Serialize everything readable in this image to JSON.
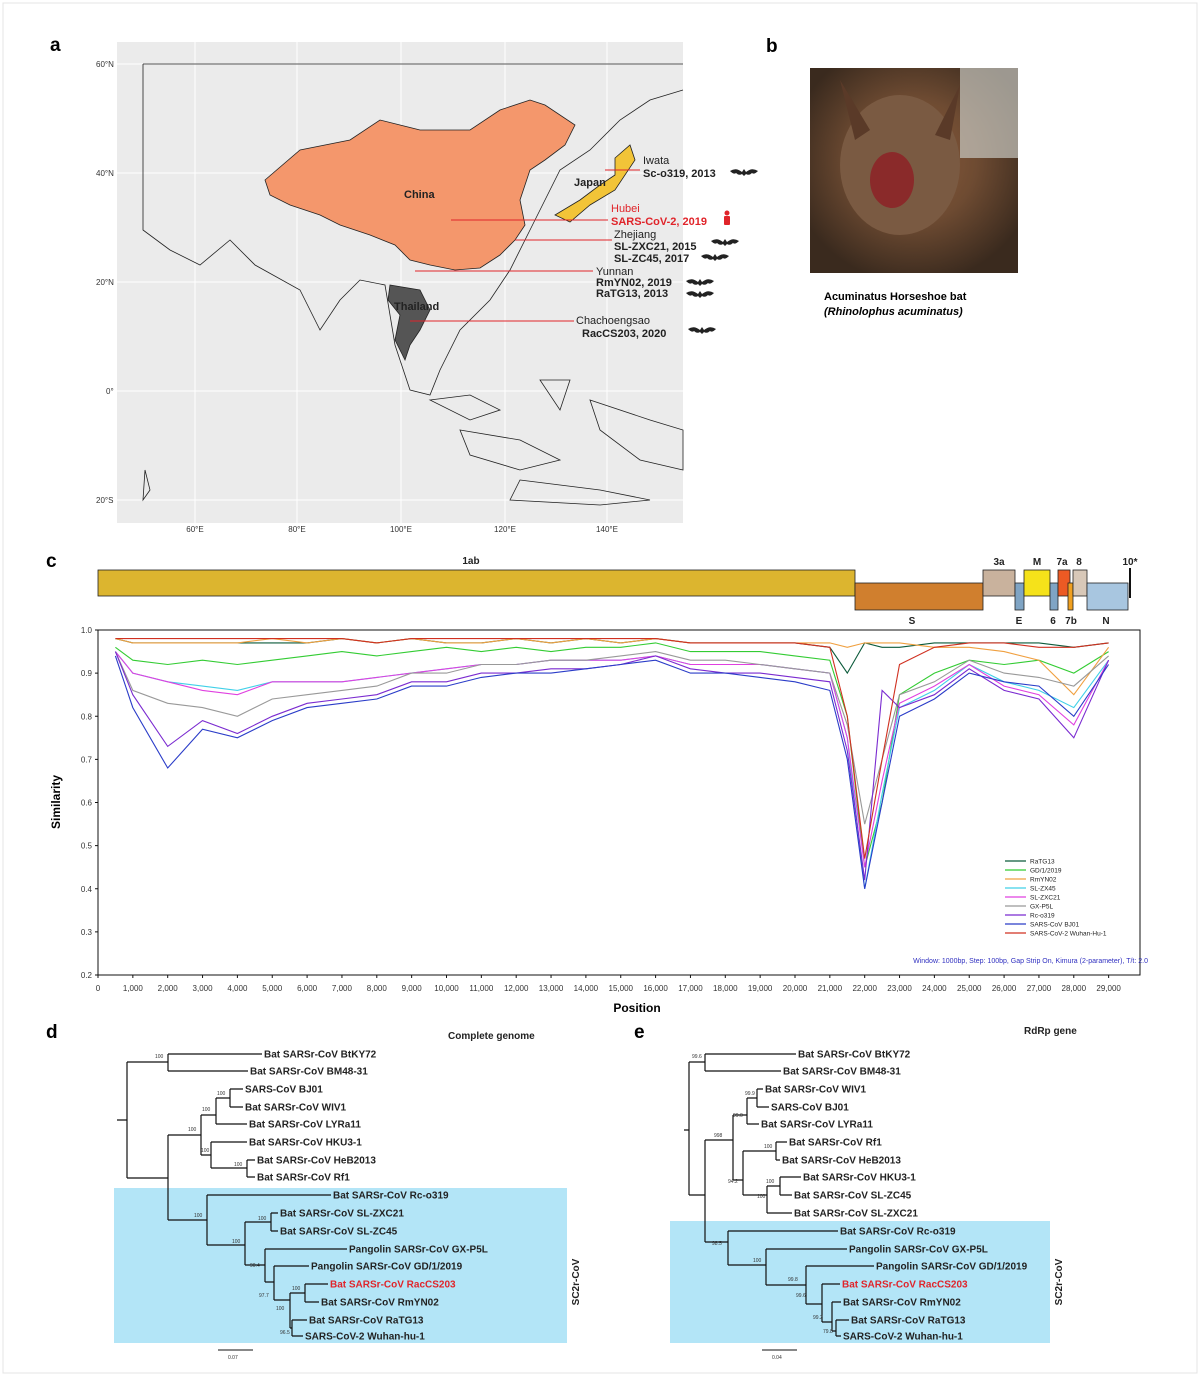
{
  "panels": {
    "a": "a",
    "b": "b",
    "c": "c",
    "d": "d",
    "e": "e"
  },
  "map": {
    "lat_ticks": [
      "60°N",
      "40°N",
      "20°N",
      "0°",
      "20°S"
    ],
    "lon_ticks": [
      "60°E",
      "80°E",
      "100°E",
      "120°E",
      "140°E"
    ],
    "countries": {
      "china": "China",
      "japan": "Japan",
      "thailand": "Thailand"
    },
    "colors": {
      "china": "#f4976c",
      "japan": "#f2c438",
      "thailand": "#555555",
      "background": "#ebebeb",
      "annotation": "#e0242a"
    },
    "annotations": [
      {
        "place": "Iwata",
        "strains": [
          "Sc-o319, 2013"
        ],
        "host": "bat",
        "highlight": false
      },
      {
        "place": "Hubei",
        "strains": [
          "SARS-CoV-2, 2019"
        ],
        "host": "human",
        "highlight": true
      },
      {
        "place": "Zhejiang",
        "strains": [
          "SL-ZXC21, 2015",
          "SL-ZC45, 2017"
        ],
        "host": "bat",
        "highlight": false
      },
      {
        "place": "Yunnan",
        "strains": [
          "RmYN02, 2019",
          "RaTG13, 2013"
        ],
        "host": "bat",
        "highlight": false
      },
      {
        "place": "Chachoengsao",
        "strains": [
          "RacCS203, 2020"
        ],
        "host": "bat",
        "highlight": false
      }
    ]
  },
  "photo": {
    "caption": "Acuminatus Horseshoe bat",
    "species": "(Rhinolophus acuminatus)"
  },
  "genome": {
    "top_labels": [
      "1ab",
      "3a",
      "M",
      "7a",
      "8",
      "10*"
    ],
    "bottom_labels": [
      "S",
      "E",
      "6",
      "7b",
      "N"
    ],
    "colors": {
      "1ab": "#dcb52f",
      "S": "#d07f2e",
      "3a": "#c9b29d",
      "E": "#7fa4c4",
      "M": "#f5e21a",
      "6": "#7fa4c4",
      "7a": "#ec5a24",
      "7b": "#f0a020",
      "8": "#d8c8b8",
      "N": "#a8c6e0"
    }
  },
  "chart_data": {
    "type": "line",
    "title": "",
    "xlabel": "Position",
    "ylabel": "Similarity",
    "xlim": [
      0,
      29900
    ],
    "ylim": [
      0.2,
      1.0
    ],
    "yticks": [
      "0.2",
      "0.3",
      "0.4",
      "0.5",
      "0.6",
      "0.7",
      "0.8",
      "0.9",
      "1.0"
    ],
    "xticks": [
      "0",
      "1,000",
      "2,000",
      "3,000",
      "4,000",
      "5,000",
      "6,000",
      "7,000",
      "8,000",
      "9,000",
      "10,000",
      "11,000",
      "12,000",
      "13,000",
      "14,000",
      "15,000",
      "16,000",
      "17,000",
      "18,000",
      "19,000",
      "20,000",
      "21,000",
      "22,000",
      "23,000",
      "24,000",
      "25,000",
      "26,000",
      "27,000",
      "28,000",
      "29,000"
    ],
    "legend_position": "bottom-right",
    "note": "Window: 1000bp, Step: 100bp, Gap Strip On, Kimura (2-parameter), T/t: 2.0",
    "x": [
      500,
      1000,
      2000,
      3000,
      4000,
      5000,
      6000,
      7000,
      8000,
      9000,
      10000,
      11000,
      12000,
      13000,
      14000,
      15000,
      16000,
      17000,
      18000,
      19000,
      20000,
      21000,
      21500,
      22000,
      22500,
      23000,
      24000,
      25000,
      26000,
      27000,
      28000,
      29000
    ],
    "series": [
      {
        "name": "RaTG13",
        "color": "#0b5a3a",
        "values": [
          0.98,
          0.97,
          0.97,
          0.97,
          0.97,
          0.97,
          0.97,
          0.98,
          0.97,
          0.98,
          0.97,
          0.97,
          0.98,
          0.97,
          0.98,
          0.97,
          0.98,
          0.97,
          0.97,
          0.97,
          0.97,
          0.96,
          0.9,
          0.97,
          0.96,
          0.96,
          0.97,
          0.97,
          0.97,
          0.97,
          0.96,
          0.97
        ]
      },
      {
        "name": "GD/1/2019",
        "color": "#33cc33",
        "values": [
          0.96,
          0.93,
          0.92,
          0.93,
          0.92,
          0.93,
          0.94,
          0.95,
          0.94,
          0.95,
          0.96,
          0.95,
          0.96,
          0.95,
          0.96,
          0.96,
          0.97,
          0.95,
          0.95,
          0.95,
          0.94,
          0.93,
          0.8,
          0.45,
          0.6,
          0.85,
          0.9,
          0.93,
          0.92,
          0.93,
          0.9,
          0.95
        ]
      },
      {
        "name": "RmYN02",
        "color": "#f0a040",
        "values": [
          0.98,
          0.97,
          0.97,
          0.97,
          0.97,
          0.98,
          0.97,
          0.98,
          0.97,
          0.98,
          0.97,
          0.97,
          0.98,
          0.97,
          0.98,
          0.97,
          0.98,
          0.97,
          0.97,
          0.97,
          0.97,
          0.97,
          0.96,
          0.97,
          0.97,
          0.97,
          0.96,
          0.96,
          0.95,
          0.93,
          0.85,
          0.96
        ]
      },
      {
        "name": "SL-ZX45",
        "color": "#40d0e8",
        "values": [
          0.95,
          0.9,
          0.88,
          0.87,
          0.86,
          0.88,
          0.88,
          0.88,
          0.89,
          0.9,
          0.91,
          0.92,
          0.92,
          0.93,
          0.93,
          0.93,
          0.94,
          0.92,
          0.92,
          0.92,
          0.91,
          0.9,
          0.75,
          0.4,
          0.62,
          0.82,
          0.86,
          0.92,
          0.88,
          0.86,
          0.82,
          0.93
        ]
      },
      {
        "name": "SL-ZXC21",
        "color": "#e040e0",
        "values": [
          0.95,
          0.9,
          0.88,
          0.86,
          0.85,
          0.88,
          0.88,
          0.88,
          0.89,
          0.9,
          0.91,
          0.92,
          0.92,
          0.93,
          0.93,
          0.93,
          0.94,
          0.92,
          0.92,
          0.92,
          0.91,
          0.9,
          0.75,
          0.45,
          0.65,
          0.83,
          0.87,
          0.92,
          0.87,
          0.85,
          0.78,
          0.93
        ]
      },
      {
        "name": "GX-P5L",
        "color": "#999999",
        "values": [
          0.95,
          0.86,
          0.83,
          0.82,
          0.8,
          0.84,
          0.85,
          0.86,
          0.87,
          0.9,
          0.9,
          0.92,
          0.92,
          0.93,
          0.93,
          0.94,
          0.95,
          0.93,
          0.93,
          0.92,
          0.91,
          0.9,
          0.78,
          0.55,
          0.7,
          0.85,
          0.88,
          0.93,
          0.9,
          0.89,
          0.87,
          0.94
        ]
      },
      {
        "name": "Rc-o319",
        "color": "#7a2ad0",
        "values": [
          0.95,
          0.85,
          0.73,
          0.79,
          0.76,
          0.8,
          0.83,
          0.84,
          0.85,
          0.88,
          0.88,
          0.9,
          0.9,
          0.91,
          0.91,
          0.92,
          0.94,
          0.91,
          0.9,
          0.9,
          0.89,
          0.88,
          0.72,
          0.42,
          0.86,
          0.82,
          0.85,
          0.91,
          0.86,
          0.84,
          0.75,
          0.93
        ]
      },
      {
        "name": "SARS-CoV BJ01",
        "color": "#2a3cc8",
        "values": [
          0.94,
          0.82,
          0.68,
          0.77,
          0.75,
          0.79,
          0.82,
          0.83,
          0.84,
          0.87,
          0.87,
          0.89,
          0.9,
          0.9,
          0.91,
          0.92,
          0.93,
          0.9,
          0.9,
          0.89,
          0.88,
          0.86,
          0.7,
          0.4,
          0.6,
          0.8,
          0.84,
          0.9,
          0.88,
          0.87,
          0.8,
          0.92
        ]
      },
      {
        "name": "SARS-CoV-2 Wuhan-Hu-1",
        "color": "#d03020",
        "values": [
          0.98,
          0.98,
          0.98,
          0.98,
          0.98,
          0.98,
          0.98,
          0.98,
          0.97,
          0.98,
          0.98,
          0.98,
          0.98,
          0.98,
          0.98,
          0.98,
          0.98,
          0.97,
          0.97,
          0.97,
          0.97,
          0.96,
          0.8,
          0.47,
          0.7,
          0.92,
          0.96,
          0.97,
          0.97,
          0.96,
          0.96,
          0.97
        ]
      }
    ]
  },
  "tree_d": {
    "title": "Complete genome",
    "clade": "SC2r-CoV",
    "scale": "0.07",
    "highlight_color": "#b3e5f7",
    "leaves": [
      "Bat SARSr-CoV BtKY72",
      "Bat SARSr-CoV BM48-31",
      "SARS-CoV BJ01",
      "Bat SARSr-CoV WIV1",
      "Bat SARSr-CoV LYRa11",
      "Bat SARSr-CoV HKU3-1",
      "Bat SARSr-CoV HeB2013",
      "Bat SARSr-CoV Rf1",
      "Bat SARSr-CoV Rc-o319",
      "Bat SARSr-CoV SL-ZXC21",
      "Bat SARSr-CoV SL-ZC45",
      "Pangolin SARSr-CoV GX-P5L",
      "Pangolin SARSr-CoV GD/1/2019",
      "Bat SARSr-CoV RacCS203",
      "Bat SARSr-CoV RmYN02",
      "Bat SARSr-CoV RaTG13",
      "SARS-CoV-2 Wuhan-hu-1"
    ],
    "bootstrap": [
      "100",
      "100",
      "100",
      "100",
      "100",
      "100",
      "100",
      "100",
      "100",
      "90.4",
      "97.7",
      "100",
      "100",
      "96.5"
    ]
  },
  "tree_e": {
    "title": "RdRp gene",
    "clade": "SC2r-CoV",
    "scale": "0.04",
    "highlight_color": "#b3e5f7",
    "leaves": [
      "Bat SARSr-CoV BtKY72",
      "Bat SARSr-CoV BM48-31",
      "Bat SARSr-CoV WIV1",
      "SARS-CoV BJ01",
      "Bat SARSr-CoV LYRa11",
      "Bat SARSr-CoV Rf1",
      "Bat SARSr-CoV HeB2013",
      "Bat SARSr-CoV HKU3-1",
      "Bat SARSr-CoV SL-ZC45",
      "Bat SARSr-CoV SL-ZXC21",
      "Bat SARSr-CoV Rc-o319",
      "Pangolin SARSr-CoV GX-P5L",
      "Pangolin SARSr-CoV GD/1/2019",
      "Bat SARSr-CoV RacCS203",
      "Bat SARSr-CoV RmYN02",
      "Bat SARSr-CoV RaTG13",
      "SARS-CoV-2 Wuhan-hu-1"
    ],
    "bootstrap": [
      "99.6",
      "99.9",
      "99.0",
      "998",
      "94.2",
      "100",
      "100",
      "100",
      "98.5",
      "100",
      "99.8",
      "99.6",
      "99.2",
      "79.8"
    ]
  }
}
